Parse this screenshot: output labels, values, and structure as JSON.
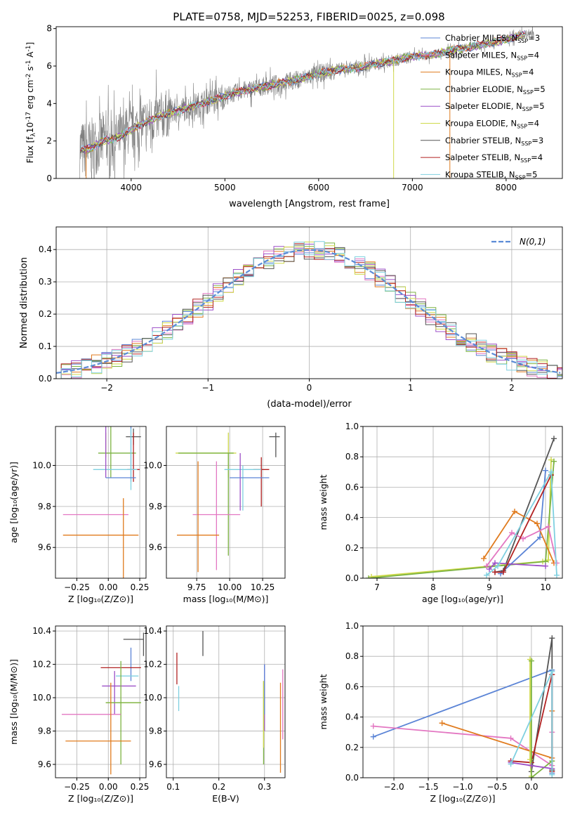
{
  "figure_title": "PLATE=0758, MJD=52253, FIBERID=0025, z=0.098",
  "colors": {
    "Chabrier MILES": "#5b84d6",
    "Salpeter MILES": "#e377c2",
    "Kroupa MILES": "#e07b1e",
    "Chabrier ELODIE": "#7cb342",
    "Salpeter ELODIE": "#9c4fc7",
    "Kroupa ELODIE": "#cfd94a",
    "Chabrier STELIB": "#555555",
    "Salpeter STELIB": "#b22222",
    "Kroupa STELIB": "#7fd0e0",
    "gaussian": "#5b8bd6"
  },
  "chart_data": [
    {
      "id": "spectrum",
      "type": "line",
      "title": "PLATE=0758, MJD=52253, FIBERID=0025, z=0.098",
      "xlabel": "wavelength [Angstrom, rest frame]",
      "ylabel": "Flux [f$_\\lambda$10$^{-17}$ erg cm$^{-2}$ s$^{-1}$ A$^{-1}$]",
      "xlim": [
        3200,
        8600
      ],
      "ylim": [
        0,
        8.1
      ],
      "xticks": [
        4000,
        5000,
        6000,
        7000,
        8000
      ],
      "yticks": [
        0,
        2,
        4,
        6,
        8
      ],
      "legend_position": "upper-right",
      "continuum": {
        "x": [
          3450,
          3500,
          3600,
          3700,
          3800,
          3900,
          4000,
          4100,
          4200,
          4300,
          4400,
          4500,
          4600,
          4700,
          4800,
          4900,
          5000,
          5200,
          5400,
          5600,
          5800,
          6000,
          6200,
          6400,
          6600,
          6800,
          7000,
          7200,
          7400,
          7600,
          7800,
          8000,
          8200,
          8300
        ],
        "y": [
          1.6,
          1.5,
          1.7,
          2.0,
          2.1,
          2.3,
          2.6,
          2.9,
          3.1,
          3.3,
          3.5,
          3.6,
          3.8,
          3.9,
          4.1,
          4.2,
          4.4,
          4.7,
          4.9,
          5.1,
          5.3,
          5.6,
          5.8,
          5.9,
          6.1,
          6.3,
          6.5,
          6.6,
          6.8,
          7.0,
          7.2,
          7.4,
          7.7,
          7.8
        ]
      },
      "series": [
        {
          "name": "Chabrier MILES, N$_{SSP}$=3"
        },
        {
          "name": "Salpeter MILES, N$_{SSP}$=4"
        },
        {
          "name": "Kroupa MILES, N$_{SSP}$=4"
        },
        {
          "name": "Chabrier ELODIE, N$_{SSP}$=5"
        },
        {
          "name": "Salpeter ELODIE, N$_{SSP}$=5"
        },
        {
          "name": "Kroupa ELODIE, N$_{SSP}$=4"
        },
        {
          "name": "Chabrier STELIB, N$_{SSP}$=3"
        },
        {
          "name": "Salpeter STELIB, N$_{SSP}$=4"
        },
        {
          "name": "Kroupa STELIB, N$_{SSP}$=5"
        }
      ],
      "legend_entries": [
        "Chabrier MILES, N",
        "Salpeter MILES, N",
        "Kroupa MILES, N",
        "Chabrier ELODIE, N",
        "Salpeter ELODIE, N",
        "Kroupa ELODIE, N",
        "Chabrier STELIB, N",
        "Salpeter STELIB, N",
        "Kroupa STELIB, N"
      ],
      "nssp": [
        3,
        4,
        4,
        5,
        5,
        4,
        3,
        4,
        5
      ]
    },
    {
      "id": "residuals",
      "type": "line",
      "xlabel": "(data-model)/error",
      "ylabel": "Normed distribution",
      "xlim": [
        -2.5,
        2.5
      ],
      "ylim": [
        0,
        0.47
      ],
      "xticks": [
        -2,
        -1,
        0,
        1,
        2
      ],
      "yticks": [
        0.0,
        0.1,
        0.2,
        0.3,
        0.4
      ],
      "grid": true,
      "legend_position": "upper-right",
      "legend_label": "N(0,1)",
      "bin_width": 0.1
    },
    {
      "id": "age-vs-Z",
      "type": "scatter",
      "xlabel": "Z [log10(Z/Z_sun)]",
      "ylabel": "age [log10(age/yr)]",
      "xlim": [
        -0.42,
        0.3
      ],
      "ylim": [
        9.45,
        10.19
      ],
      "xticks": [
        -0.25,
        0.0,
        0.25
      ],
      "yticks": [
        9.6,
        9.8,
        10.0
      ],
      "grid": true,
      "points": [
        {
          "series": "Chabrier STELIB",
          "x": 0.2,
          "y": 10.14,
          "xerr": [
            0.06,
            0.06
          ],
          "yerr": [
            0.04,
            0.04
          ]
        },
        {
          "series": "Kroupa ELODIE",
          "x": -0.02,
          "y": 10.06,
          "xerr": [
            0.0,
            0.0
          ],
          "yerr": [
            0.02,
            0.1
          ]
        },
        {
          "series": "Chabrier ELODIE",
          "x": 0.02,
          "y": 10.06,
          "xerr": [
            0.1,
            0.2
          ],
          "yerr": [
            0.12,
            0.5
          ]
        },
        {
          "series": "Chabrier MILES",
          "x": 0.18,
          "y": 10.04,
          "xerr": [
            0.0,
            0.0
          ],
          "yerr": [
            0.12,
            0.3
          ]
        },
        {
          "series": "Salpeter STELIB",
          "x": 0.2,
          "y": 9.98,
          "xerr": [
            0.05,
            0.05
          ],
          "yerr": [
            0.06,
            0.18
          ]
        },
        {
          "series": "Kroupa STELIB",
          "x": 0.18,
          "y": 9.98,
          "xerr": [
            0.3,
            0.05
          ],
          "yerr": [
            0.1,
            0.2
          ]
        },
        {
          "series": "Salpeter ELODIE",
          "x": -0.02,
          "y": 9.98,
          "xerr": [
            0.0,
            0.0
          ],
          "yerr": [
            0.04,
            0.46
          ]
        },
        {
          "series": "Chabrier MILES",
          "x": 0.1,
          "y": 9.94,
          "xerr": [
            0.12,
            0.12
          ],
          "yerr": [
            0.0,
            0.0
          ]
        },
        {
          "series": "Salpeter MILES",
          "x": -0.02,
          "y": 9.76,
          "xerr": [
            0.34,
            0.18
          ],
          "yerr": [
            0.0,
            0.0
          ]
        },
        {
          "series": "Kroupa MILES",
          "x": 0.12,
          "y": 9.66,
          "xerr": [
            0.48,
            0.12
          ],
          "yerr": [
            0.36,
            0.18
          ]
        }
      ]
    },
    {
      "id": "age-vs-mass",
      "type": "scatter",
      "xlabel": "mass [log10(M/M_sun)]",
      "ylabel": "",
      "xlim": [
        9.52,
        10.42
      ],
      "ylim": [
        9.45,
        10.19
      ],
      "xticks": [
        9.75,
        10.0,
        10.25
      ],
      "yticks": [
        9.6,
        9.8,
        10.0
      ],
      "grid": true,
      "points": [
        {
          "series": "Chabrier STELIB",
          "x": 10.35,
          "y": 10.14,
          "xerr": [
            0.05,
            0.03
          ],
          "yerr": [
            0.1,
            0.02
          ]
        },
        {
          "series": "Kroupa ELODIE",
          "x": 9.99,
          "y": 10.06,
          "xerr": [
            0.4,
            0.06
          ],
          "yerr": [
            0.12,
            0.1
          ]
        },
        {
          "series": "Chabrier ELODIE",
          "x": 9.99,
          "y": 10.06,
          "xerr": [
            0.38,
            0.04
          ],
          "yerr": [
            0.5,
            0.0
          ]
        },
        {
          "series": "Salpeter STELIB",
          "x": 10.24,
          "y": 9.98,
          "xerr": [
            0.06,
            0.06
          ],
          "yerr": [
            0.18,
            0.06
          ]
        },
        {
          "series": "Kroupa STELIB",
          "x": 10.1,
          "y": 9.98,
          "xerr": [
            0.14,
            0.14
          ],
          "yerr": [
            0.2,
            0.02
          ]
        },
        {
          "series": "Salpeter ELODIE",
          "x": 10.08,
          "y": 9.98,
          "xerr": [
            0.0,
            0.0
          ],
          "yerr": [
            0.2,
            0.08
          ]
        },
        {
          "series": "Chabrier MILES",
          "x": 10.15,
          "y": 9.94,
          "xerr": [
            0.15,
            0.15
          ],
          "yerr": [
            0.0,
            0.0
          ]
        },
        {
          "series": "Salpeter MILES",
          "x": 9.9,
          "y": 9.76,
          "xerr": [
            0.18,
            0.18
          ],
          "yerr": [
            0.27,
            0.26
          ]
        },
        {
          "series": "Kroupa MILES",
          "x": 9.76,
          "y": 9.66,
          "xerr": [
            0.16,
            0.16
          ],
          "yerr": [
            0.18,
            0.36
          ]
        }
      ]
    },
    {
      "id": "massweight-vs-age",
      "type": "line",
      "xlabel": "age [log10(age/yr)]",
      "ylabel": "mass weight",
      "xlim": [
        6.75,
        10.3
      ],
      "ylim": [
        0,
        1.0
      ],
      "xticks": [
        7,
        8,
        9,
        10
      ],
      "yticks": [
        0.0,
        0.2,
        0.4,
        0.6,
        0.8,
        1.0
      ],
      "grid": true,
      "series": [
        {
          "name": "Chabrier STELIB",
          "x": [
            9.1,
            9.25,
            10.15
          ],
          "y": [
            0.04,
            0.05,
            0.92
          ]
        },
        {
          "name": "Kroupa ELODIE",
          "x": [
            6.9,
            9.95,
            10.05,
            10.1
          ],
          "y": [
            0.01,
            0.11,
            0.12,
            0.78
          ]
        },
        {
          "name": "Chabrier ELODIE",
          "x": [
            6.85,
            10.0,
            10.15
          ],
          "y": [
            0.0,
            0.11,
            0.77
          ]
        },
        {
          "name": "Chabrier MILES",
          "x": [
            9.2,
            9.9,
            10.0
          ],
          "y": [
            0.03,
            0.27,
            0.71
          ]
        },
        {
          "name": "Kroupa MILES",
          "x": [
            8.9,
            9.45,
            9.85,
            10.15
          ],
          "y": [
            0.13,
            0.44,
            0.36,
            0.1
          ]
        },
        {
          "name": "Salpeter MILES",
          "x": [
            8.95,
            9.4,
            9.6,
            10.05,
            10.2
          ],
          "y": [
            0.08,
            0.3,
            0.26,
            0.34,
            0.1
          ]
        },
        {
          "name": "Salpeter ELODIE",
          "x": [
            9.0,
            9.1,
            10.0
          ],
          "y": [
            0.06,
            0.1,
            0.08
          ]
        },
        {
          "name": "Salpeter STELIB",
          "x": [
            9.1,
            9.25,
            10.1
          ],
          "y": [
            0.04,
            0.04,
            0.68
          ]
        },
        {
          "name": "Kroupa STELIB",
          "x": [
            8.95,
            9.15,
            10.1,
            10.2
          ],
          "y": [
            0.02,
            0.08,
            0.7,
            0.02
          ]
        }
      ]
    },
    {
      "id": "mass-vs-Z",
      "type": "scatter",
      "xlabel": "Z [log10(Z/Z_sun)]",
      "ylabel": "mass [log10(M/M_sun)]",
      "xlim": [
        -0.42,
        0.3
      ],
      "ylim": [
        9.52,
        10.43
      ],
      "xticks": [
        -0.25,
        0.0,
        0.25
      ],
      "yticks": [
        9.6,
        9.8,
        10.0,
        10.2,
        10.4
      ],
      "grid": true,
      "points": [
        {
          "series": "Chabrier STELIB",
          "x": 0.28,
          "y": 10.35,
          "xerr": [
            0.16,
            0.0
          ],
          "yerr": [
            0.1,
            0.04
          ]
        },
        {
          "series": "Chabrier MILES",
          "x": 0.18,
          "y": 10.2,
          "xerr": [
            0.0,
            0.0
          ],
          "yerr": [
            0.1,
            0.1
          ]
        },
        {
          "series": "Salpeter STELIB",
          "x": 0.1,
          "y": 10.18,
          "xerr": [
            0.16,
            0.16
          ],
          "yerr": [
            0.0,
            0.0
          ]
        },
        {
          "series": "Kroupa STELIB",
          "x": 0.16,
          "y": 10.13,
          "xerr": [
            0.1,
            0.08
          ],
          "yerr": [
            0.0,
            0.0
          ]
        },
        {
          "series": "Salpeter ELODIE",
          "x": 0.05,
          "y": 10.07,
          "xerr": [
            0.1,
            0.17
          ],
          "yerr": [
            0.17,
            0.09
          ]
        },
        {
          "series": "Kroupa ELODIE",
          "x": 0.1,
          "y": 9.97,
          "xerr": [
            0.12,
            0.16
          ],
          "yerr": [
            0.0,
            0.0
          ]
        },
        {
          "series": "Chabrier ELODIE",
          "x": 0.1,
          "y": 9.97,
          "xerr": [
            0.12,
            0.16
          ],
          "yerr": [
            0.37,
            0.25
          ]
        },
        {
          "series": "Salpeter MILES",
          "x": -0.12,
          "y": 9.9,
          "xerr": [
            0.25,
            0.22
          ],
          "yerr": [
            0.0,
            0.0
          ]
        },
        {
          "series": "Kroupa MILES",
          "x": 0.02,
          "y": 9.74,
          "xerr": [
            0.36,
            0.16
          ],
          "yerr": [
            0.2,
            0.35
          ]
        }
      ]
    },
    {
      "id": "mass-vs-EBV",
      "type": "scatter",
      "xlabel": "E(B-V)",
      "ylabel": "",
      "xlim": [
        0.085,
        0.345
      ],
      "ylim": [
        9.52,
        10.43
      ],
      "xticks": [
        0.1,
        0.2,
        0.3
      ],
      "yticks": [
        9.6,
        9.8,
        10.0,
        10.2,
        10.4
      ],
      "grid": true,
      "points": [
        {
          "series": "Chabrier STELIB",
          "x": 0.165,
          "y": 10.32,
          "xerr": [
            0.0,
            0.0
          ],
          "yerr": [
            0.07,
            0.08
          ]
        },
        {
          "series": "Salpeter STELIB",
          "x": 0.108,
          "y": 10.18,
          "xerr": [
            0.0,
            0.0
          ],
          "yerr": [
            0.1,
            0.09
          ]
        },
        {
          "series": "Kroupa STELIB",
          "x": 0.112,
          "y": 10.0,
          "xerr": [
            0.0,
            0.0
          ],
          "yerr": [
            0.08,
            0.07
          ]
        },
        {
          "series": "Salpeter ELODIE",
          "x": 0.3,
          "y": 10.0,
          "xerr": [
            0.0,
            0.0
          ],
          "yerr": [
            0.2,
            0.2
          ]
        },
        {
          "series": "Chabrier ELODIE",
          "x": 0.298,
          "y": 9.85,
          "xerr": [
            0.0,
            0.0
          ],
          "yerr": [
            0.25,
            0.25
          ]
        },
        {
          "series": "Chabrier MILES",
          "x": 0.3,
          "y": 10.05,
          "xerr": [
            0.0,
            0.0
          ],
          "yerr": [
            0.15,
            0.15
          ]
        },
        {
          "series": "Salpeter MILES",
          "x": 0.34,
          "y": 9.9,
          "xerr": [
            0.0,
            0.0
          ],
          "yerr": [
            0.15,
            0.27
          ]
        },
        {
          "series": "Kroupa MILES",
          "x": 0.335,
          "y": 9.82,
          "xerr": [
            0.0,
            0.0
          ],
          "yerr": [
            0.27,
            0.27
          ]
        },
        {
          "series": "Kroupa ELODIE",
          "x": 0.298,
          "y": 9.9,
          "xerr": [
            0.0,
            0.0
          ],
          "yerr": [
            0.2,
            0.2
          ]
        }
      ]
    },
    {
      "id": "massweight-vs-Z",
      "type": "line",
      "xlabel": "Z [log10(Z/Z_sun)]",
      "ylabel": "mass weight",
      "xlim": [
        -2.45,
        0.45
      ],
      "ylim": [
        0,
        1.0
      ],
      "xticks": [
        -2.0,
        -1.5,
        -1.0,
        -0.5,
        0.0
      ],
      "yticks": [
        0.0,
        0.2,
        0.4,
        0.6,
        0.8,
        1.0
      ],
      "grid": true,
      "series": [
        {
          "name": "Chabrier MILES",
          "x": [
            -2.3,
            0.3,
            0.3
          ],
          "y": [
            0.27,
            0.71,
            0.03
          ]
        },
        {
          "name": "Salpeter MILES",
          "x": [
            -2.3,
            -0.3,
            0.3,
            0.3
          ],
          "y": [
            0.34,
            0.26,
            0.08,
            0.3
          ]
        },
        {
          "name": "Kroupa MILES",
          "x": [
            -1.3,
            0.3,
            0.3
          ],
          "y": [
            0.36,
            0.13,
            0.44
          ]
        },
        {
          "name": "Chabrier STELIB",
          "x": [
            0.0,
            0.3,
            0.3
          ],
          "y": [
            0.04,
            0.92,
            0.05
          ]
        },
        {
          "name": "Salpeter STELIB",
          "x": [
            -0.3,
            0.0,
            0.3,
            0.3
          ],
          "y": [
            0.11,
            0.1,
            0.68,
            0.04
          ]
        },
        {
          "name": "Kroupa ELODIE",
          "x": [
            -0.02,
            -0.02,
            0.0
          ],
          "y": [
            0.78,
            0.12,
            0.01
          ]
        },
        {
          "name": "Chabrier ELODIE",
          "x": [
            0.0,
            0.0,
            0.3
          ],
          "y": [
            0.77,
            0.0,
            0.11
          ]
        },
        {
          "name": "Salpeter ELODIE",
          "x": [
            -0.3,
            0.0,
            0.3
          ],
          "y": [
            0.1,
            0.08,
            0.06
          ]
        },
        {
          "name": "Kroupa STELIB",
          "x": [
            -0.3,
            0.3,
            0.3
          ],
          "y": [
            0.09,
            0.7,
            0.02
          ]
        }
      ]
    }
  ]
}
